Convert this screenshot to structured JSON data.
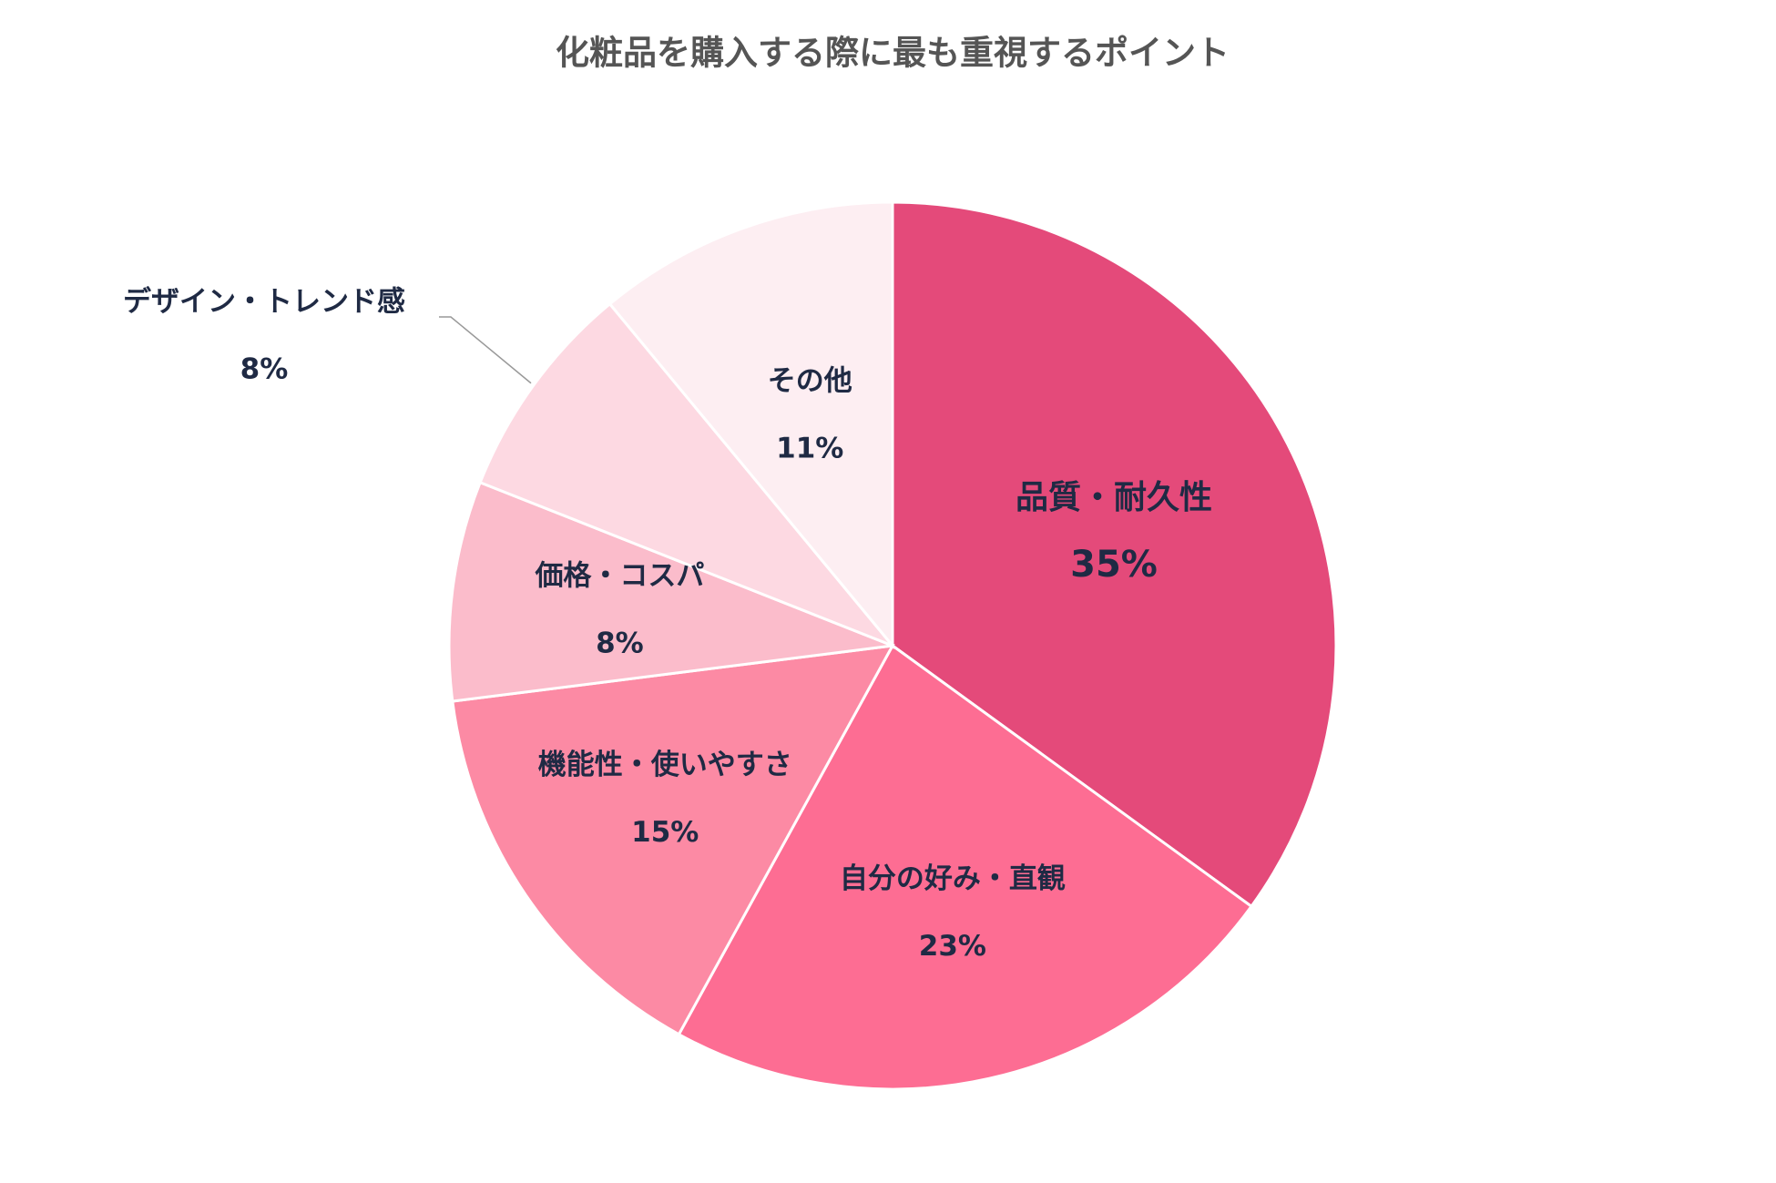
{
  "chart_data": {
    "type": "pie",
    "title": "化粧品を購入する際に最も重視するポイント",
    "categories": [
      "品質・耐久性",
      "自分の好み・直観",
      "機能性・使いやすさ",
      "価格・コスパ",
      "デザイン・トレンド感",
      "その他"
    ],
    "values": [
      35,
      23,
      15,
      8,
      8,
      11
    ],
    "value_labels": [
      "35%",
      "23%",
      "15%",
      "8%",
      "8%",
      "11%"
    ],
    "colors": [
      "#e44a7a",
      "#fd6d93",
      "#fc8aa4",
      "#fbbccb",
      "#fdd9e2",
      "#fdeef2"
    ]
  }
}
